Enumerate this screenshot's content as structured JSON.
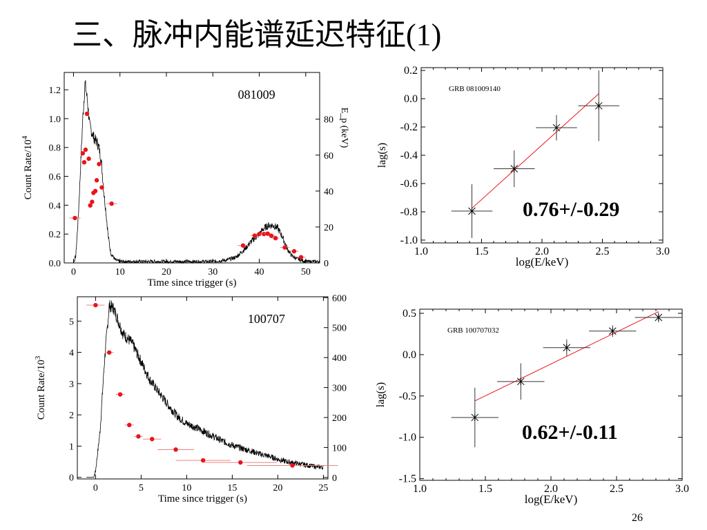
{
  "title": "三、脉冲内能谱延迟特征",
  "title_suffix": "(1)",
  "page_number": "26",
  "chart_data": [
    {
      "type": "line",
      "annotation": "081009",
      "xlabel": "Time since trigger (s)",
      "ylabel": "Count Rate/10",
      "ylabel_sup": "4",
      "y2label": "E_p (keV)",
      "xlim": [
        -2,
        53
      ],
      "ylim": [
        0,
        1.32
      ],
      "y2lim": [
        0,
        106
      ],
      "xticks": [
        "0",
        "10",
        "20",
        "30",
        "40",
        "50"
      ],
      "yticks": [
        "0.0",
        "0.2",
        "0.4",
        "0.6",
        "0.8",
        "1.0",
        "1.2"
      ],
      "y2ticks": [
        "0",
        "20",
        "40",
        "60",
        "80"
      ],
      "light_curve": {
        "x": [
          -1,
          0,
          0.5,
          1,
          1.5,
          2,
          2.5,
          3,
          3.5,
          4,
          4.5,
          5,
          5.5,
          6,
          6.5,
          7,
          7.5,
          8,
          9,
          10,
          12,
          15,
          20,
          25,
          30,
          33,
          35,
          36,
          37,
          38,
          39,
          40,
          41,
          42,
          43,
          44,
          45,
          46,
          47,
          48,
          50,
          52,
          53
        ],
        "y": [
          0,
          0,
          0.05,
          0.3,
          0.65,
          1.0,
          1.25,
          1.12,
          0.95,
          0.9,
          0.86,
          0.84,
          0.8,
          0.7,
          0.5,
          0.35,
          0.18,
          0.07,
          0.02,
          0.01,
          0.01,
          0.01,
          0.01,
          0.01,
          0.01,
          0.02,
          0.04,
          0.07,
          0.1,
          0.14,
          0.17,
          0.2,
          0.24,
          0.26,
          0.26,
          0.24,
          0.18,
          0.1,
          0.05,
          0.03,
          0.01,
          0.01,
          0.01
        ]
      },
      "ep_points": {
        "x": [
          0.3,
          2.0,
          2.3,
          2.6,
          2.9,
          3.3,
          3.6,
          4.0,
          4.3,
          4.7,
          5.0,
          5.5,
          6.1,
          8.2,
          36.5,
          39.0,
          40.0,
          41.0,
          41.8,
          42.6,
          43.5,
          45.5,
          47.5,
          49.0
        ],
        "y": [
          25,
          61,
          56,
          63,
          83,
          58,
          32,
          34,
          39,
          40,
          46,
          55,
          42,
          33,
          9.7,
          15.2,
          16.1,
          16.1,
          16.3,
          15.1,
          13.8,
          8.6,
          6.5,
          3.2
        ],
        "xerr": [
          1.2,
          0.3,
          0.3,
          0.3,
          0.3,
          0.3,
          0.3,
          0.3,
          0.3,
          0.3,
          0.3,
          0.4,
          0.5,
          1.2,
          1.2,
          0.8,
          0.8,
          0.8,
          0.8,
          0.8,
          0.8,
          1.0,
          1.0,
          1.0
        ]
      }
    },
    {
      "type": "scatter",
      "annotation": "GRB 081009140",
      "fit_label": "0.76+/-0.29",
      "xlabel": "log(E/keV)",
      "ylabel": "lag(s)",
      "xlim": [
        1.0,
        3.0
      ],
      "ylim": [
        -1.02,
        0.22
      ],
      "xticks": [
        "1.0",
        "1.5",
        "2.0",
        "2.5",
        "3.0"
      ],
      "yticks": [
        "0.2",
        "0.0",
        "-0.2",
        "-0.4",
        "-0.6",
        "-0.8",
        "-1.0"
      ],
      "points": {
        "x": [
          1.42,
          1.77,
          2.12,
          2.47
        ],
        "y": [
          -0.795,
          -0.495,
          -0.205,
          -0.05
        ],
        "xerr": [
          0.17,
          0.17,
          0.17,
          0.17
        ],
        "yerr": [
          0.19,
          0.13,
          0.09,
          0.25
        ]
      },
      "fit_line": {
        "x": [
          1.42,
          2.47
        ],
        "y": [
          -0.775,
          0.035
        ]
      }
    },
    {
      "type": "line",
      "annotation": "100707",
      "xlabel": "Time since trigger (s)",
      "ylabel": "Count Rate/10",
      "ylabel_sup": "3",
      "xlim": [
        -2,
        25.5
      ],
      "ylim": [
        -0.05,
        5.78
      ],
      "y2lim": [
        -5,
        603
      ],
      "xticks": [
        "0",
        "5",
        "10",
        "15",
        "20",
        "25"
      ],
      "yticks": [
        "0",
        "1",
        "2",
        "3",
        "4",
        "5"
      ],
      "y2ticks": [
        "0",
        "100",
        "200",
        "300",
        "400",
        "500",
        "600"
      ],
      "light_curve": {
        "x": [
          -1,
          -0.2,
          0,
          0.5,
          1,
          1.5,
          2,
          2.5,
          3,
          4,
          5,
          6,
          7,
          8,
          9,
          10,
          11,
          12,
          13,
          14,
          15,
          16,
          17,
          18,
          19,
          20,
          21,
          22,
          23,
          24,
          25
        ],
        "y": [
          0,
          0,
          0.2,
          1.5,
          3.8,
          5.5,
          5.4,
          5.0,
          4.6,
          4.3,
          3.7,
          3.1,
          2.7,
          2.3,
          1.95,
          1.72,
          1.6,
          1.45,
          1.3,
          1.15,
          1.03,
          0.93,
          0.85,
          0.75,
          0.68,
          0.58,
          0.5,
          0.45,
          0.4,
          0.35,
          0.32
        ]
      },
      "ep_points": {
        "x": [
          0.0,
          1.5,
          2.7,
          3.7,
          4.7,
          6.2,
          8.8,
          11.8,
          15.9,
          21.6
        ],
        "y": [
          575,
          417,
          277,
          175,
          137,
          128,
          93,
          57,
          50,
          40
        ],
        "xerr": [
          1.0,
          0.5,
          0.5,
          0.5,
          0.5,
          1.0,
          2.0,
          3.0,
          4.0,
          5.0
        ]
      }
    },
    {
      "type": "scatter",
      "annotation": "GRB 100707032",
      "fit_label": "0.62+/-0.11",
      "xlabel": "log(E/keV)",
      "ylabel": "lag(s)",
      "xlim": [
        1.0,
        3.0
      ],
      "ylim": [
        -1.52,
        0.55
      ],
      "xticks": [
        "1.0",
        "1.5",
        "2.0",
        "2.5",
        "3.0"
      ],
      "yticks": [
        "0.5",
        "0.0",
        "-0.5",
        "-1.0",
        "-1.5"
      ],
      "points": {
        "x": [
          1.42,
          1.77,
          2.12,
          2.47,
          2.82
        ],
        "y": [
          -0.76,
          -0.325,
          0.085,
          0.285,
          0.45
        ],
        "xerr": [
          0.18,
          0.18,
          0.18,
          0.18,
          0.18
        ],
        "yerr": [
          0.36,
          0.22,
          0.1,
          0.07,
          0.06
        ]
      },
      "fit_line": {
        "x": [
          1.42,
          2.82
        ],
        "y": [
          -0.56,
          0.52
        ]
      }
    }
  ]
}
